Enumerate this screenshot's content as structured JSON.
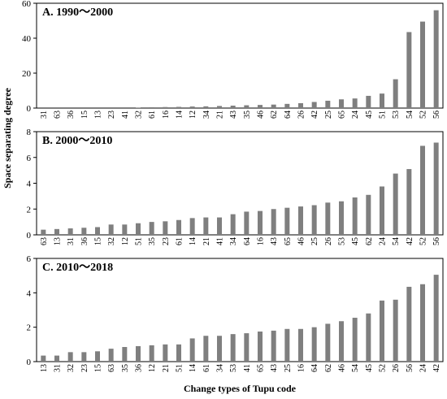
{
  "figure": {
    "ylabel": "Space separating degree",
    "xlabel": "Change types of Tupu code"
  },
  "chart_data": [
    {
      "type": "bar",
      "title": "A. 1990～2000",
      "ylabel": "Space separating degree",
      "ylim": [
        0,
        60
      ],
      "yticks": [
        0,
        20,
        40,
        60
      ],
      "categories": [
        "31",
        "63",
        "36",
        "15",
        "13",
        "23",
        "41",
        "32",
        "61",
        "16",
        "14",
        "12",
        "34",
        "21",
        "43",
        "35",
        "46",
        "62",
        "64",
        "26",
        "42",
        "25",
        "65",
        "24",
        "45",
        "51",
        "53",
        "54",
        "52",
        "56"
      ],
      "values": [
        0,
        0,
        0,
        0,
        0,
        0,
        0,
        0.3,
        0.5,
        0.6,
        0.7,
        0.9,
        1.0,
        1.2,
        1.4,
        1.6,
        1.8,
        2.0,
        2.4,
        2.8,
        3.5,
        4.2,
        5.0,
        5.5,
        7.0,
        8.3,
        16.5,
        43.5,
        49.5,
        56.0
      ],
      "grid": false
    },
    {
      "type": "bar",
      "title": "B. 2000～2010",
      "ylabel": "Space separating degree",
      "ylim": [
        0,
        8
      ],
      "yticks": [
        0,
        2,
        4,
        6,
        8
      ],
      "categories": [
        "63",
        "13",
        "31",
        "36",
        "15",
        "32",
        "12",
        "51",
        "35",
        "23",
        "61",
        "14",
        "21",
        "41",
        "34",
        "64",
        "16",
        "43",
        "65",
        "46",
        "25",
        "26",
        "53",
        "45",
        "62",
        "24",
        "54",
        "42",
        "52",
        "56"
      ],
      "values": [
        0.4,
        0.45,
        0.5,
        0.55,
        0.6,
        0.8,
        0.8,
        0.9,
        1.0,
        1.05,
        1.15,
        1.3,
        1.35,
        1.35,
        1.6,
        1.8,
        1.85,
        2.0,
        2.1,
        2.2,
        2.3,
        2.5,
        2.6,
        2.9,
        3.1,
        3.75,
        4.75,
        5.1,
        6.9,
        7.15
      ],
      "grid": false
    },
    {
      "type": "bar",
      "title": "C. 2010～2018",
      "ylabel": "Space separating degree",
      "ylim": [
        0,
        6
      ],
      "yticks": [
        0,
        2,
        4,
        6
      ],
      "categories": [
        "13",
        "31",
        "32",
        "23",
        "15",
        "63",
        "35",
        "36",
        "12",
        "21",
        "51",
        "14",
        "61",
        "34",
        "53",
        "41",
        "65",
        "43",
        "25",
        "16",
        "64",
        "62",
        "46",
        "54",
        "45",
        "52",
        "26",
        "56",
        "24",
        "42"
      ],
      "values": [
        0.35,
        0.35,
        0.55,
        0.55,
        0.6,
        0.75,
        0.85,
        0.9,
        0.95,
        1.0,
        1.0,
        1.35,
        1.5,
        1.5,
        1.6,
        1.65,
        1.75,
        1.8,
        1.9,
        1.9,
        2.0,
        2.2,
        2.35,
        2.55,
        2.8,
        3.55,
        3.6,
        4.35,
        4.5,
        5.05
      ],
      "grid": false
    }
  ]
}
